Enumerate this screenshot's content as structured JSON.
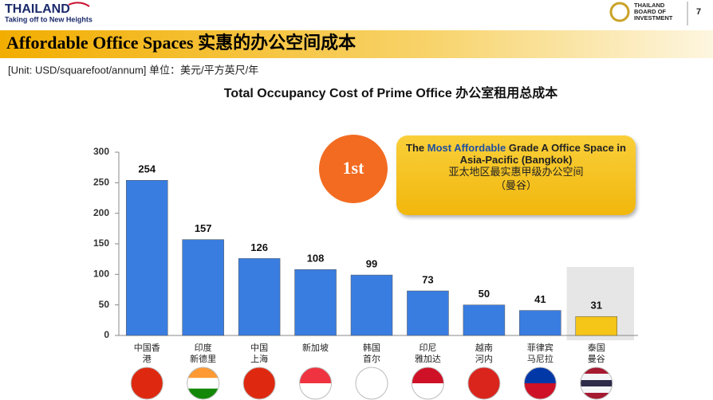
{
  "header": {
    "brand": "THAILAND",
    "tagline": "Taking off to New Heights",
    "boi_lines": [
      "THAILAND",
      "BOARD OF",
      "INVESTMENT"
    ],
    "page": "7"
  },
  "slide_title": "Affordable Office Spaces 实惠的办公空间成本",
  "unit": "[Unit: USD/squarefoot/annum]  单位：美元/平方英尺/年",
  "chart_data": {
    "type": "bar",
    "title": "Total Occupancy Cost of Prime Office  办公室租用总成本",
    "categories": [
      "中国香\n港",
      "印度\n新德里",
      "中国\n上海",
      "新加坡",
      "韩国\n首尔",
      "印尼\n雅加达",
      "越南\n河内",
      "菲律宾\n马尼拉",
      "泰国\n曼谷"
    ],
    "values": [
      254,
      157,
      126,
      108,
      99,
      73,
      50,
      41,
      31
    ],
    "colors": [
      "#3a7de0",
      "#3a7de0",
      "#3a7de0",
      "#3a7de0",
      "#3a7de0",
      "#3a7de0",
      "#3a7de0",
      "#3a7de0",
      "#f5c518"
    ],
    "highlight_index": 8,
    "ylim": [
      0,
      300
    ],
    "yticks": [
      0,
      50,
      100,
      150,
      200,
      250,
      300
    ],
    "badge": "1st",
    "callout": {
      "before": "The",
      "highlight": "Most Affordable",
      "after": "Grade A Office Space in Asia-Pacific (Bangkok)",
      "chinese": "亚太地区最实惠甲级办公空间\n（曼谷）"
    }
  }
}
